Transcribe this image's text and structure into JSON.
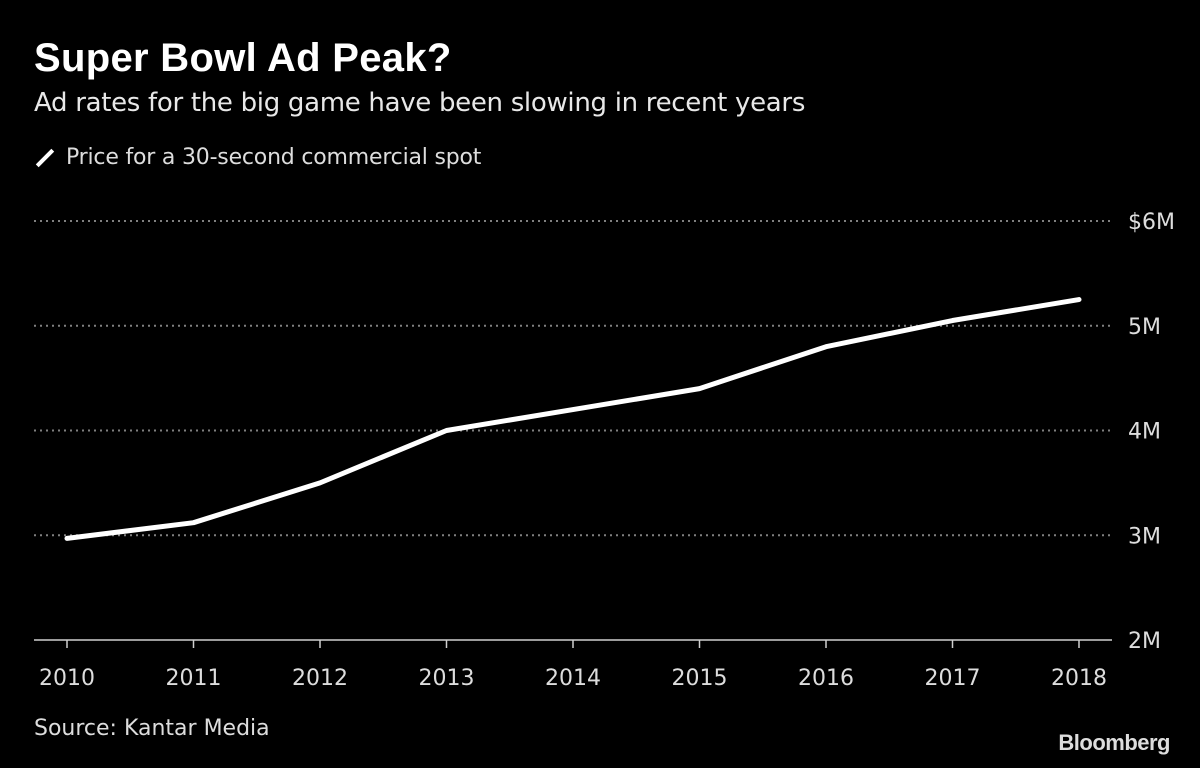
{
  "title": "Super Bowl Ad Peak?",
  "subtitle": "Ad rates for the big game have been slowing in recent years",
  "source": "Source: Kantar Media",
  "logo": "Bloomberg",
  "colors": {
    "background": "#000000",
    "line": "#ffffff",
    "grid": "#808080",
    "text": "#dddddd"
  },
  "chart_data": {
    "type": "line",
    "title": "Super Bowl Ad Peak?",
    "subtitle": "Ad rates for the big game have been slowing in recent years",
    "x": [
      2010,
      2011,
      2012,
      2013,
      2014,
      2015,
      2016,
      2017,
      2018
    ],
    "series": [
      {
        "name": "Price for a 30-second commercial spot",
        "values": [
          2.97,
          3.12,
          3.5,
          4.0,
          4.2,
          4.4,
          4.8,
          5.05,
          5.25
        ]
      }
    ],
    "ylim": [
      2,
      6
    ],
    "yticks": [
      6,
      5,
      4,
      3,
      2
    ],
    "ytick_labels": [
      "$6M",
      "5M",
      "4M",
      "3M",
      "2M"
    ],
    "xtick_labels": [
      "2010",
      "2011",
      "2012",
      "2013",
      "2014",
      "2015",
      "2016",
      "2017",
      "2018"
    ],
    "grid": "horizontal dotted",
    "yaxis_position": "right",
    "legend": "top-left",
    "xlabel": "",
    "ylabel": ""
  }
}
